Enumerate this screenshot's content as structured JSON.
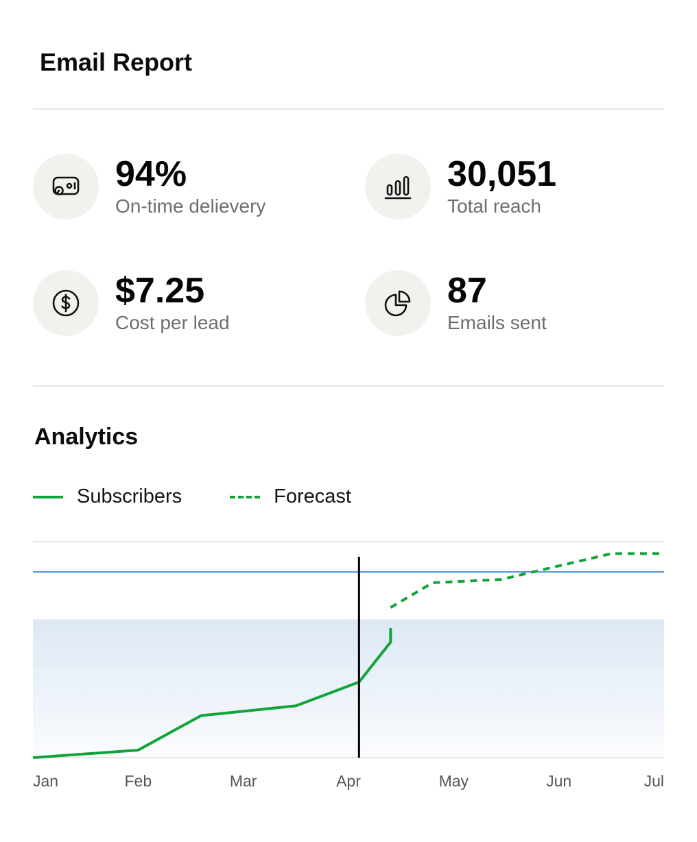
{
  "header": {
    "title": "Email Report"
  },
  "stats": [
    {
      "value": "94%",
      "label": "On-time delievery",
      "icon": "delivery-gauge-icon"
    },
    {
      "value": "30,051",
      "label": "Total reach",
      "icon": "bar-chart-icon"
    },
    {
      "value": "$7.25",
      "label": "Cost per lead",
      "icon": "dollar-circle-icon"
    },
    {
      "value": "87",
      "label": "Emails sent",
      "icon": "pie-chart-icon"
    }
  ],
  "analytics": {
    "title": "Analytics"
  },
  "colors": {
    "series": "#12a33a",
    "reference": "#4a8fd4",
    "band": "#dde8f5",
    "marker": "#000000"
  },
  "chart_data": {
    "type": "line",
    "x_ticks": [
      "Jan",
      "Feb",
      "Mar",
      "Apr",
      "May",
      "Jun",
      "Jul"
    ],
    "xlim": [
      0,
      6
    ],
    "ylim": [
      0,
      100
    ],
    "grid": true,
    "legend_position": "top-left",
    "series": [
      {
        "name": "Subscribers",
        "style": "solid",
        "points": [
          [
            0,
            0
          ],
          [
            1,
            3.5
          ],
          [
            1.6,
            19.5
          ],
          [
            2.5,
            24
          ],
          [
            3.1,
            35
          ],
          [
            3.4,
            53.5
          ],
          [
            3.4,
            60
          ]
        ]
      },
      {
        "name": "Forecast",
        "style": "dashed",
        "points": [
          [
            3.4,
            69.5
          ],
          [
            3.8,
            81
          ],
          [
            4.45,
            82.5
          ],
          [
            5.5,
            94.5
          ],
          [
            6,
            94.5
          ]
        ]
      }
    ],
    "reference_line": {
      "y": 86
    },
    "shaded_band": {
      "y": [
        0,
        64
      ]
    },
    "current_marker": {
      "x": 3.1
    }
  }
}
